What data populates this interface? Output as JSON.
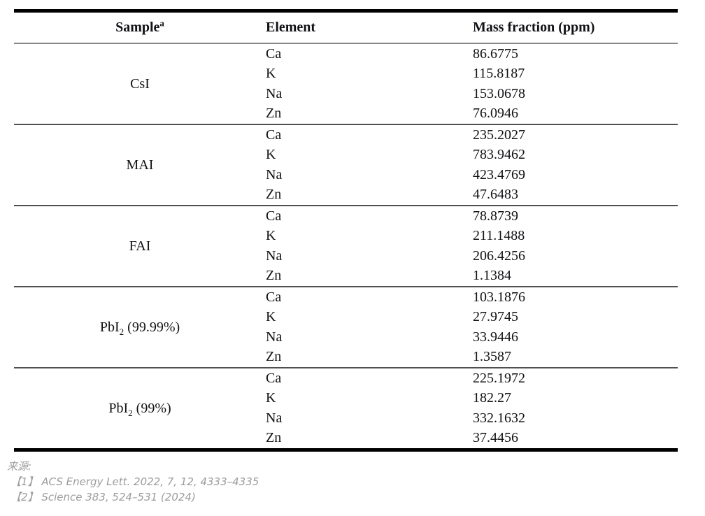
{
  "table": {
    "headers": {
      "sample": "Sample",
      "sample_superscript": "a",
      "element": "Element",
      "mass_fraction": "Mass fraction (ppm)"
    },
    "sections": [
      {
        "sample_base": "CsI",
        "sample_sub": "",
        "sample_suffix": "",
        "rows": [
          {
            "element": "Ca",
            "mass_fraction": "86.6775"
          },
          {
            "element": "K",
            "mass_fraction": "115.8187"
          },
          {
            "element": "Na",
            "mass_fraction": "153.0678"
          },
          {
            "element": "Zn",
            "mass_fraction": "76.0946"
          }
        ]
      },
      {
        "sample_base": "MAI",
        "sample_sub": "",
        "sample_suffix": "",
        "rows": [
          {
            "element": "Ca",
            "mass_fraction": "235.2027"
          },
          {
            "element": "K",
            "mass_fraction": "783.9462"
          },
          {
            "element": "Na",
            "mass_fraction": "423.4769"
          },
          {
            "element": "Zn",
            "mass_fraction": "47.6483"
          }
        ]
      },
      {
        "sample_base": "FAI",
        "sample_sub": "",
        "sample_suffix": "",
        "rows": [
          {
            "element": "Ca",
            "mass_fraction": "78.8739"
          },
          {
            "element": "K",
            "mass_fraction": "211.1488"
          },
          {
            "element": "Na",
            "mass_fraction": "206.4256"
          },
          {
            "element": "Zn",
            "mass_fraction": "1.1384"
          }
        ]
      },
      {
        "sample_base": "PbI",
        "sample_sub": "2",
        "sample_suffix": " (99.99%)",
        "rows": [
          {
            "element": "Ca",
            "mass_fraction": "103.1876"
          },
          {
            "element": "K",
            "mass_fraction": "27.9745"
          },
          {
            "element": "Na",
            "mass_fraction": "33.9446"
          },
          {
            "element": "Zn",
            "mass_fraction": "1.3587"
          }
        ]
      },
      {
        "sample_base": "PbI",
        "sample_sub": "2",
        "sample_suffix": " (99%)",
        "rows": [
          {
            "element": "Ca",
            "mass_fraction": "225.1972"
          },
          {
            "element": "K",
            "mass_fraction": "182.27"
          },
          {
            "element": "Na",
            "mass_fraction": "332.1632"
          },
          {
            "element": "Zn",
            "mass_fraction": "37.4456"
          }
        ]
      }
    ]
  },
  "footer": {
    "source_label": "来源:",
    "references": [
      {
        "marker": "【1】",
        "text": "ACS Energy Lett. 2022, 7, 12, 4333–4335"
      },
      {
        "marker": "【2】",
        "text": "Science 383, 524–531 (2024)"
      }
    ]
  },
  "colors": {
    "border_heavy": "#000000",
    "border_light": "#4f4f4f",
    "header_underline": "#888888",
    "text": "#121216",
    "footer_text": "#9c9c9c"
  }
}
